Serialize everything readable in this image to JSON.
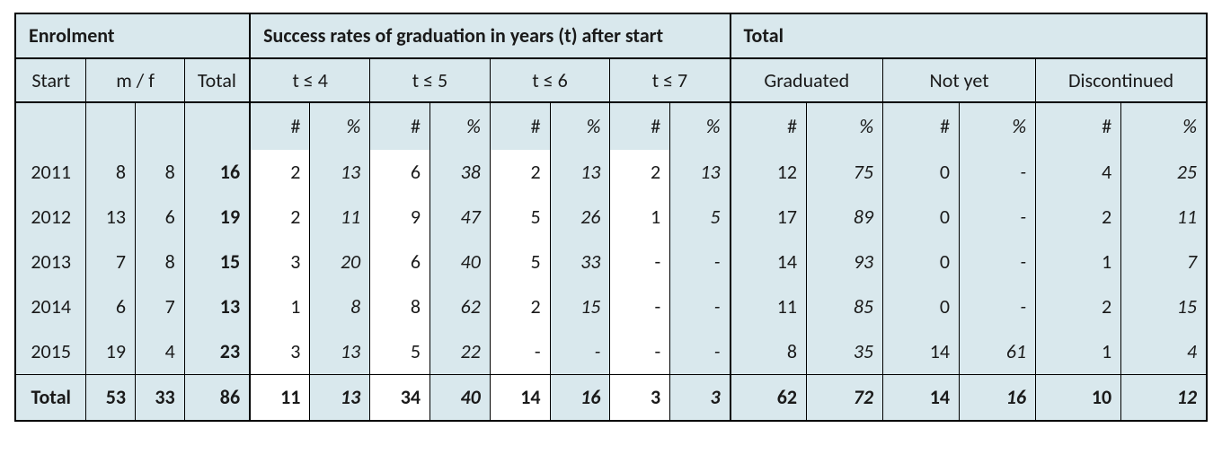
{
  "colors": {
    "background": "#d9e8ed",
    "border": "#000000",
    "text": "#1a1a1a"
  },
  "font": {
    "family": "Calibri",
    "body_size_pt": 16,
    "header_size_pt": 17
  },
  "headers": {
    "enrolment": "Enrolment",
    "success": "Success rates of graduation in years (t) after start",
    "total": "Total",
    "start": "Start",
    "mf": "m / f",
    "subtotal": "Total",
    "t4": "t ≤ 4",
    "t5": "t ≤ 5",
    "t6": "t ≤ 6",
    "t7": "t ≤ 7",
    "graduated": "Graduated",
    "notyet": "Not yet",
    "discontinued": "Discontinued",
    "hash": "#",
    "pct": "%"
  },
  "rows": [
    {
      "start": "2011",
      "m": "8",
      "f": "8",
      "total": "16",
      "t4n": "2",
      "t4p": "13",
      "t5n": "6",
      "t5p": "38",
      "t6n": "2",
      "t6p": "13",
      "t7n": "2",
      "t7p": "13",
      "gn": "12",
      "gp": "75",
      "nn": "0",
      "np": "-",
      "dn": "4",
      "dp": "25"
    },
    {
      "start": "2012",
      "m": "13",
      "f": "6",
      "total": "19",
      "t4n": "2",
      "t4p": "11",
      "t5n": "9",
      "t5p": "47",
      "t6n": "5",
      "t6p": "26",
      "t7n": "1",
      "t7p": "5",
      "gn": "17",
      "gp": "89",
      "nn": "0",
      "np": "-",
      "dn": "2",
      "dp": "11"
    },
    {
      "start": "2013",
      "m": "7",
      "f": "8",
      "total": "15",
      "t4n": "3",
      "t4p": "20",
      "t5n": "6",
      "t5p": "40",
      "t6n": "5",
      "t6p": "33",
      "t7n": "-",
      "t7p": "-",
      "gn": "14",
      "gp": "93",
      "nn": "0",
      "np": "-",
      "dn": "1",
      "dp": "7"
    },
    {
      "start": "2014",
      "m": "6",
      "f": "7",
      "total": "13",
      "t4n": "1",
      "t4p": "8",
      "t5n": "8",
      "t5p": "62",
      "t6n": "2",
      "t6p": "15",
      "t7n": "-",
      "t7p": "-",
      "gn": "11",
      "gp": "85",
      "nn": "0",
      "np": "-",
      "dn": "2",
      "dp": "15"
    },
    {
      "start": "2015",
      "m": "19",
      "f": "4",
      "total": "23",
      "t4n": "3",
      "t4p": "13",
      "t5n": "5",
      "t5p": "22",
      "t6n": "-",
      "t6p": "-",
      "t7n": "-",
      "t7p": "-",
      "gn": "8",
      "gp": "35",
      "nn": "14",
      "np": "61",
      "dn": "1",
      "dp": "4"
    }
  ],
  "totals": {
    "start": "Total",
    "m": "53",
    "f": "33",
    "total": "86",
    "t4n": "11",
    "t4p": "13",
    "t5n": "34",
    "t5p": "40",
    "t6n": "14",
    "t6p": "16",
    "t7n": "3",
    "t7p": "3",
    "gn": "62",
    "gp": "72",
    "nn": "14",
    "np": "16",
    "dn": "10",
    "dp": "12"
  }
}
